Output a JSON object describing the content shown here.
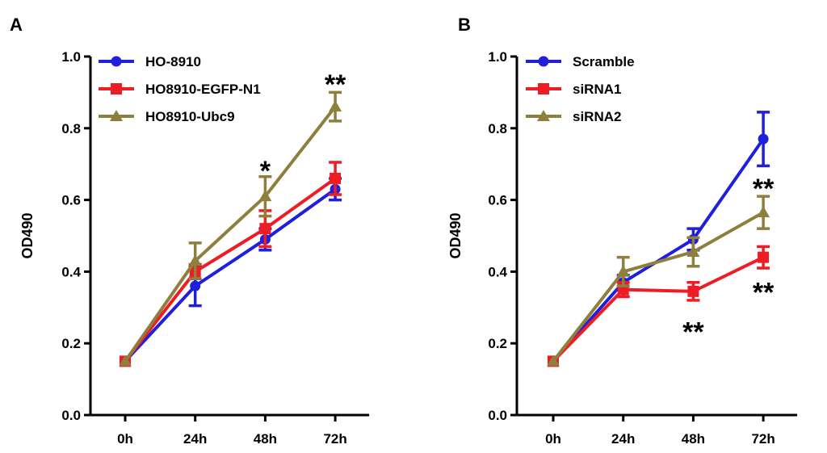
{
  "chart_data": [
    {
      "type": "line",
      "panel": "A",
      "title": "",
      "xlabel": "",
      "ylabel": "OD490",
      "ylim": [
        0.0,
        1.0
      ],
      "yticks": [
        "0.0",
        "0.2",
        "0.4",
        "0.6",
        "0.8",
        "1.0"
      ],
      "categories": [
        "0h",
        "24h",
        "48h",
        "72h"
      ],
      "legend_position": "top-left",
      "series": [
        {
          "name": "HO-8910",
          "color": "#1f1fdc",
          "marker": "circle",
          "values": [
            0.15,
            0.36,
            0.49,
            0.63
          ],
          "errors": [
            0.0,
            0.055,
            0.03,
            0.03
          ]
        },
        {
          "name": "HO8910-EGFP-N1",
          "color": "#ee1c24",
          "marker": "square",
          "values": [
            0.15,
            0.4,
            0.52,
            0.66
          ],
          "errors": [
            0.0,
            0.02,
            0.05,
            0.045
          ]
        },
        {
          "name": "HO8910-Ubc9",
          "color": "#8f7f3c",
          "marker": "triangle",
          "values": [
            0.15,
            0.43,
            0.61,
            0.86
          ],
          "errors": [
            0.0,
            0.05,
            0.055,
            0.04
          ]
        }
      ],
      "annotations": [
        {
          "text": "*",
          "category": "48h",
          "value": 0.71
        },
        {
          "text": "**",
          "category": "72h",
          "value": 0.95
        }
      ]
    },
    {
      "type": "line",
      "panel": "B",
      "title": "",
      "xlabel": "",
      "ylabel": "OD490",
      "ylim": [
        0.0,
        1.0
      ],
      "yticks": [
        "0.0",
        "0.2",
        "0.4",
        "0.6",
        "0.8",
        "1.0"
      ],
      "categories": [
        "0h",
        "24h",
        "48h",
        "72h"
      ],
      "legend_position": "top-left",
      "series": [
        {
          "name": "Scramble",
          "color": "#1f1fdc",
          "marker": "circle",
          "values": [
            0.15,
            0.37,
            0.49,
            0.77
          ],
          "errors": [
            0.0,
            0.02,
            0.03,
            0.075
          ]
        },
        {
          "name": "siRNA1",
          "color": "#ee1c24",
          "marker": "square",
          "values": [
            0.15,
            0.35,
            0.345,
            0.44
          ],
          "errors": [
            0.0,
            0.02,
            0.025,
            0.03
          ]
        },
        {
          "name": "siRNA2",
          "color": "#8f7f3c",
          "marker": "triangle",
          "values": [
            0.15,
            0.4,
            0.455,
            0.565
          ],
          "errors": [
            0.0,
            0.04,
            0.04,
            0.045
          ]
        }
      ],
      "annotations": [
        {
          "text": "**",
          "category": "72h",
          "value": 0.66
        },
        {
          "text": "**",
          "category": "72h",
          "value": 0.37
        },
        {
          "text": "**",
          "category": "48h",
          "value": 0.26
        }
      ]
    }
  ]
}
